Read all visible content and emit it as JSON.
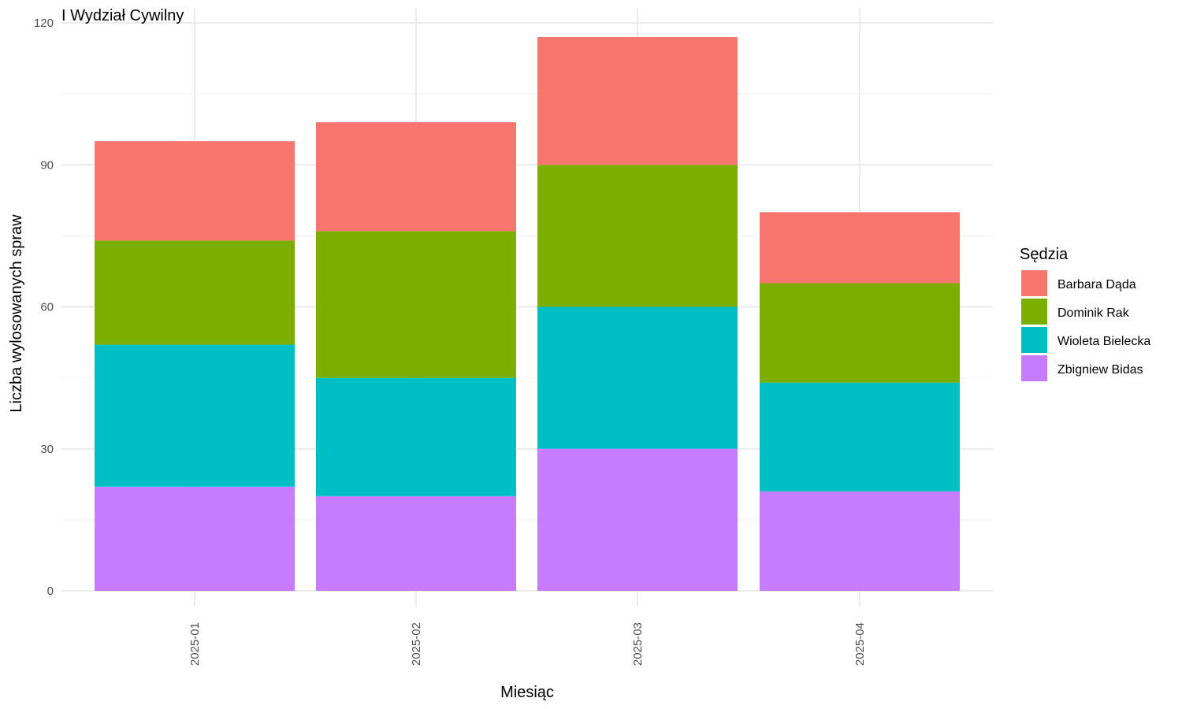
{
  "chart_data": {
    "type": "bar",
    "stacked": true,
    "title": "I Wydział Cywilny",
    "xlabel": "Miesiąc",
    "ylabel": "Liczba wylosowanych spraw",
    "ylim": [
      0,
      120
    ],
    "yticks": [
      0,
      30,
      60,
      90,
      120
    ],
    "grid": true,
    "legend_position": "right",
    "legend_title": "Sędzia",
    "categories": [
      "2025-01",
      "2025-02",
      "2025-03",
      "2025-04"
    ],
    "series": [
      {
        "name": "Barbara Dąda",
        "color": "#F8766D",
        "values": [
          21,
          23,
          27,
          15
        ]
      },
      {
        "name": "Dominik Rak",
        "color": "#7CAE00",
        "values": [
          22,
          31,
          30,
          21
        ]
      },
      {
        "name": "Wioleta Bielecka",
        "color": "#00BFC4",
        "values": [
          30,
          25,
          30,
          23
        ]
      },
      {
        "name": "Zbigniew Bidas",
        "color": "#C77CFF",
        "values": [
          22,
          20,
          30,
          21
        ]
      }
    ]
  }
}
